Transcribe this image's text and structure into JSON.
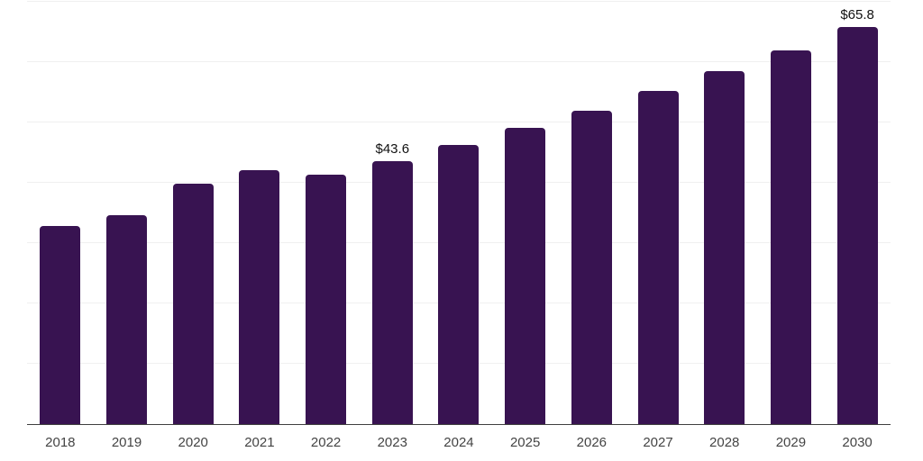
{
  "chart_data": {
    "type": "bar",
    "title": "",
    "xlabel": "",
    "ylabel": "",
    "categories": [
      "2018",
      "2019",
      "2020",
      "2021",
      "2022",
      "2023",
      "2024",
      "2025",
      "2026",
      "2027",
      "2028",
      "2029",
      "2030"
    ],
    "values": [
      32.8,
      34.6,
      39.8,
      42.1,
      41.4,
      43.6,
      46.3,
      49.1,
      52.0,
      55.2,
      58.5,
      61.9,
      65.8
    ],
    "value_labels": [
      "",
      "",
      "",
      "",
      "",
      "$43.6",
      "",
      "",
      "",
      "",
      "",
      "",
      "$65.8"
    ],
    "ylim": [
      0,
      70
    ],
    "grid_step": 10,
    "grid": "horizontal-only",
    "legend": "none",
    "y_axis_tick_labels": "none"
  },
  "colors": {
    "bar": "#381351",
    "axis_line": "#3f3f3f",
    "tick_label": "#444444",
    "value_label": "#111111",
    "gridline": "#f0f0f0",
    "background": "#ffffff"
  }
}
